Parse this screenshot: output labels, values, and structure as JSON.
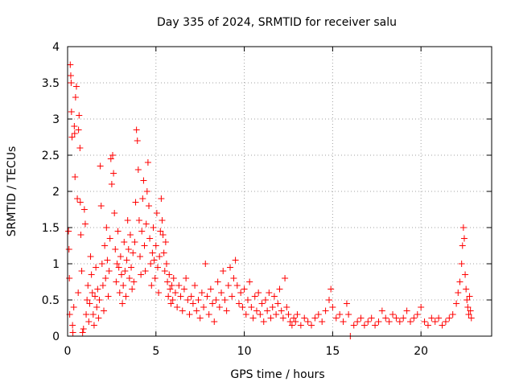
{
  "chart_data": {
    "type": "scatter",
    "title": "Day 335 of 2024, SRMTID for receiver salu",
    "xlabel": "GPS time / hours",
    "ylabel": "SRMTID / TECUs",
    "xlim": [
      0,
      24
    ],
    "ylim": [
      0,
      4
    ],
    "xticks": [
      0,
      5,
      10,
      15,
      20
    ],
    "xtick_labels": [
      "0",
      "5",
      "10",
      "15",
      "20"
    ],
    "yticks": [
      0,
      0.5,
      1,
      1.5,
      2,
      2.5,
      3,
      3.5,
      4
    ],
    "ytick_labels": [
      "0",
      "0.5",
      "1",
      "1.5",
      "2",
      "2.5",
      "3",
      "3.5",
      "4"
    ],
    "grid": true,
    "marker": "+",
    "series": [
      {
        "name": "SRMTID",
        "color": "#ff0000",
        "points": [
          [
            0.05,
            1.45
          ],
          [
            0.08,
            1.2
          ],
          [
            0.1,
            0.8
          ],
          [
            0.12,
            0.3
          ],
          [
            0.15,
            3.75
          ],
          [
            0.18,
            3.6
          ],
          [
            0.2,
            3.5
          ],
          [
            0.22,
            3.1
          ],
          [
            0.25,
            2.75
          ],
          [
            0.28,
            0.15
          ],
          [
            0.3,
            0.05
          ],
          [
            0.35,
            0.4
          ],
          [
            0.38,
            2.9
          ],
          [
            0.4,
            2.8
          ],
          [
            0.42,
            2.2
          ],
          [
            0.45,
            3.3
          ],
          [
            0.5,
            3.45
          ],
          [
            0.55,
            1.9
          ],
          [
            0.6,
            0.6
          ],
          [
            0.62,
            2.85
          ],
          [
            0.65,
            3.05
          ],
          [
            0.7,
            2.6
          ],
          [
            0.72,
            1.85
          ],
          [
            0.75,
            1.4
          ],
          [
            0.8,
            0.9
          ],
          [
            0.85,
            0.05
          ],
          [
            0.9,
            0.1
          ],
          [
            0.95,
            1.75
          ],
          [
            1.0,
            1.55
          ],
          [
            1.05,
            0.3
          ],
          [
            1.1,
            0.5
          ],
          [
            1.15,
            0.7
          ],
          [
            1.2,
            0.2
          ],
          [
            1.25,
            0.45
          ],
          [
            1.3,
            1.1
          ],
          [
            1.35,
            0.85
          ],
          [
            1.4,
            0.6
          ],
          [
            1.45,
            0.3
          ],
          [
            1.5,
            0.15
          ],
          [
            1.55,
            0.55
          ],
          [
            1.6,
            0.95
          ],
          [
            1.65,
            0.4
          ],
          [
            1.7,
            0.65
          ],
          [
            1.75,
            0.25
          ],
          [
            1.8,
            0.5
          ],
          [
            1.85,
            2.35
          ],
          [
            1.9,
            1.8
          ],
          [
            1.95,
            1.0
          ],
          [
            2.0,
            0.7
          ],
          [
            2.05,
            0.35
          ],
          [
            2.1,
            1.25
          ],
          [
            2.15,
            0.8
          ],
          [
            2.2,
            1.5
          ],
          [
            2.25,
            1.05
          ],
          [
            2.3,
            0.55
          ],
          [
            2.35,
            0.9
          ],
          [
            2.4,
            1.35
          ],
          [
            2.45,
            2.45
          ],
          [
            2.5,
            2.1
          ],
          [
            2.55,
            2.5
          ],
          [
            2.6,
            2.25
          ],
          [
            2.65,
            1.7
          ],
          [
            2.7,
            1.2
          ],
          [
            2.75,
            0.75
          ],
          [
            2.8,
            1.0
          ],
          [
            2.85,
            1.45
          ],
          [
            2.9,
            0.95
          ],
          [
            2.95,
            0.6
          ],
          [
            3.0,
            1.1
          ],
          [
            3.05,
            0.85
          ],
          [
            3.1,
            0.45
          ],
          [
            3.15,
            0.7
          ],
          [
            3.2,
            1.3
          ],
          [
            3.25,
            0.9
          ],
          [
            3.3,
            0.55
          ],
          [
            3.35,
            1.05
          ],
          [
            3.4,
            1.6
          ],
          [
            3.45,
            1.2
          ],
          [
            3.5,
            0.8
          ],
          [
            3.55,
            1.4
          ],
          [
            3.6,
            0.95
          ],
          [
            3.65,
            0.65
          ],
          [
            3.7,
            1.15
          ],
          [
            3.75,
            0.75
          ],
          [
            3.8,
            1.3
          ],
          [
            3.85,
            1.85
          ],
          [
            3.9,
            2.85
          ],
          [
            3.95,
            2.7
          ],
          [
            4.0,
            2.3
          ],
          [
            4.05,
            1.6
          ],
          [
            4.1,
            1.1
          ],
          [
            4.15,
            0.85
          ],
          [
            4.2,
            1.45
          ],
          [
            4.25,
            1.9
          ],
          [
            4.3,
            2.15
          ],
          [
            4.35,
            1.25
          ],
          [
            4.4,
            0.9
          ],
          [
            4.45,
            1.55
          ],
          [
            4.5,
            2.0
          ],
          [
            4.55,
            2.4
          ],
          [
            4.6,
            1.8
          ],
          [
            4.65,
            1.35
          ],
          [
            4.7,
            1.0
          ],
          [
            4.75,
            0.7
          ],
          [
            4.8,
            1.15
          ],
          [
            4.85,
            1.5
          ],
          [
            4.9,
            1.05
          ],
          [
            4.95,
            0.8
          ],
          [
            5.0,
            1.25
          ],
          [
            5.05,
            1.7
          ],
          [
            5.1,
            0.95
          ],
          [
            5.15,
            0.6
          ],
          [
            5.2,
            1.1
          ],
          [
            5.25,
            1.45
          ],
          [
            5.3,
            1.9
          ],
          [
            5.35,
            1.6
          ],
          [
            5.4,
            1.4
          ],
          [
            5.45,
            1.15
          ],
          [
            5.5,
            0.9
          ],
          [
            5.55,
            1.3
          ],
          [
            5.6,
            1.0
          ],
          [
            5.65,
            0.75
          ],
          [
            5.7,
            0.55
          ],
          [
            5.75,
            0.85
          ],
          [
            5.8,
            0.65
          ],
          [
            5.85,
            0.45
          ],
          [
            5.9,
            0.7
          ],
          [
            5.95,
            0.5
          ],
          [
            6.0,
            0.8
          ],
          [
            6.1,
            0.6
          ],
          [
            6.2,
            0.4
          ],
          [
            6.3,
            0.7
          ],
          [
            6.4,
            0.55
          ],
          [
            6.5,
            0.35
          ],
          [
            6.6,
            0.65
          ],
          [
            6.7,
            0.8
          ],
          [
            6.8,
            0.5
          ],
          [
            6.9,
            0.3
          ],
          [
            7.0,
            0.55
          ],
          [
            7.1,
            0.45
          ],
          [
            7.2,
            0.7
          ],
          [
            7.3,
            0.35
          ],
          [
            7.4,
            0.5
          ],
          [
            7.5,
            0.25
          ],
          [
            7.6,
            0.6
          ],
          [
            7.7,
            0.4
          ],
          [
            7.8,
            1.0
          ],
          [
            7.9,
            0.55
          ],
          [
            8.0,
            0.3
          ],
          [
            8.1,
            0.65
          ],
          [
            8.2,
            0.45
          ],
          [
            8.3,
            0.2
          ],
          [
            8.4,
            0.5
          ],
          [
            8.5,
            0.75
          ],
          [
            8.6,
            0.4
          ],
          [
            8.7,
            0.6
          ],
          [
            8.8,
            0.9
          ],
          [
            8.9,
            0.5
          ],
          [
            9.0,
            0.35
          ],
          [
            9.1,
            0.7
          ],
          [
            9.2,
            0.95
          ],
          [
            9.3,
            0.55
          ],
          [
            9.4,
            0.8
          ],
          [
            9.5,
            1.05
          ],
          [
            9.6,
            0.7
          ],
          [
            9.7,
            0.45
          ],
          [
            9.8,
            0.6
          ],
          [
            9.9,
            0.4
          ],
          [
            10.0,
            0.65
          ],
          [
            10.1,
            0.3
          ],
          [
            10.2,
            0.5
          ],
          [
            10.3,
            0.75
          ],
          [
            10.4,
            0.4
          ],
          [
            10.5,
            0.25
          ],
          [
            10.6,
            0.55
          ],
          [
            10.7,
            0.35
          ],
          [
            10.8,
            0.6
          ],
          [
            10.9,
            0.3
          ],
          [
            11.0,
            0.45
          ],
          [
            11.1,
            0.2
          ],
          [
            11.2,
            0.5
          ],
          [
            11.3,
            0.35
          ],
          [
            11.4,
            0.6
          ],
          [
            11.5,
            0.25
          ],
          [
            11.6,
            0.4
          ],
          [
            11.7,
            0.55
          ],
          [
            11.8,
            0.3
          ],
          [
            11.9,
            0.45
          ],
          [
            12.0,
            0.65
          ],
          [
            12.1,
            0.35
          ],
          [
            12.2,
            0.25
          ],
          [
            12.3,
            0.8
          ],
          [
            12.4,
            0.4
          ],
          [
            12.5,
            0.3
          ],
          [
            12.6,
            0.2
          ],
          [
            12.7,
            0.15
          ],
          [
            12.8,
            0.25
          ],
          [
            12.9,
            0.2
          ],
          [
            13.0,
            0.3
          ],
          [
            13.2,
            0.15
          ],
          [
            13.4,
            0.25
          ],
          [
            13.6,
            0.2
          ],
          [
            13.8,
            0.15
          ],
          [
            14.0,
            0.25
          ],
          [
            14.2,
            0.3
          ],
          [
            14.4,
            0.2
          ],
          [
            14.6,
            0.35
          ],
          [
            14.8,
            0.5
          ],
          [
            14.9,
            0.65
          ],
          [
            15.0,
            0.4
          ],
          [
            15.2,
            0.25
          ],
          [
            15.4,
            0.3
          ],
          [
            15.6,
            0.2
          ],
          [
            15.8,
            0.45
          ],
          [
            15.9,
            0.3
          ],
          [
            16.0,
            0.0
          ],
          [
            16.2,
            0.15
          ],
          [
            16.4,
            0.2
          ],
          [
            16.6,
            0.25
          ],
          [
            16.8,
            0.15
          ],
          [
            17.0,
            0.2
          ],
          [
            17.2,
            0.25
          ],
          [
            17.4,
            0.15
          ],
          [
            17.6,
            0.2
          ],
          [
            17.8,
            0.35
          ],
          [
            18.0,
            0.25
          ],
          [
            18.2,
            0.2
          ],
          [
            18.4,
            0.3
          ],
          [
            18.6,
            0.25
          ],
          [
            18.8,
            0.2
          ],
          [
            19.0,
            0.25
          ],
          [
            19.2,
            0.35
          ],
          [
            19.4,
            0.2
          ],
          [
            19.6,
            0.25
          ],
          [
            19.8,
            0.3
          ],
          [
            20.0,
            0.4
          ],
          [
            20.2,
            0.2
          ],
          [
            20.4,
            0.15
          ],
          [
            20.6,
            0.25
          ],
          [
            20.8,
            0.2
          ],
          [
            21.0,
            0.25
          ],
          [
            21.2,
            0.15
          ],
          [
            21.4,
            0.2
          ],
          [
            21.6,
            0.25
          ],
          [
            21.8,
            0.3
          ],
          [
            22.0,
            0.45
          ],
          [
            22.1,
            0.6
          ],
          [
            22.2,
            0.75
          ],
          [
            22.3,
            1.0
          ],
          [
            22.35,
            1.25
          ],
          [
            22.4,
            1.5
          ],
          [
            22.45,
            1.35
          ],
          [
            22.5,
            0.85
          ],
          [
            22.55,
            0.65
          ],
          [
            22.6,
            0.5
          ],
          [
            22.65,
            0.4
          ],
          [
            22.7,
            0.3
          ],
          [
            22.75,
            0.55
          ],
          [
            22.8,
            0.35
          ],
          [
            22.85,
            0.25
          ]
        ]
      }
    ]
  }
}
